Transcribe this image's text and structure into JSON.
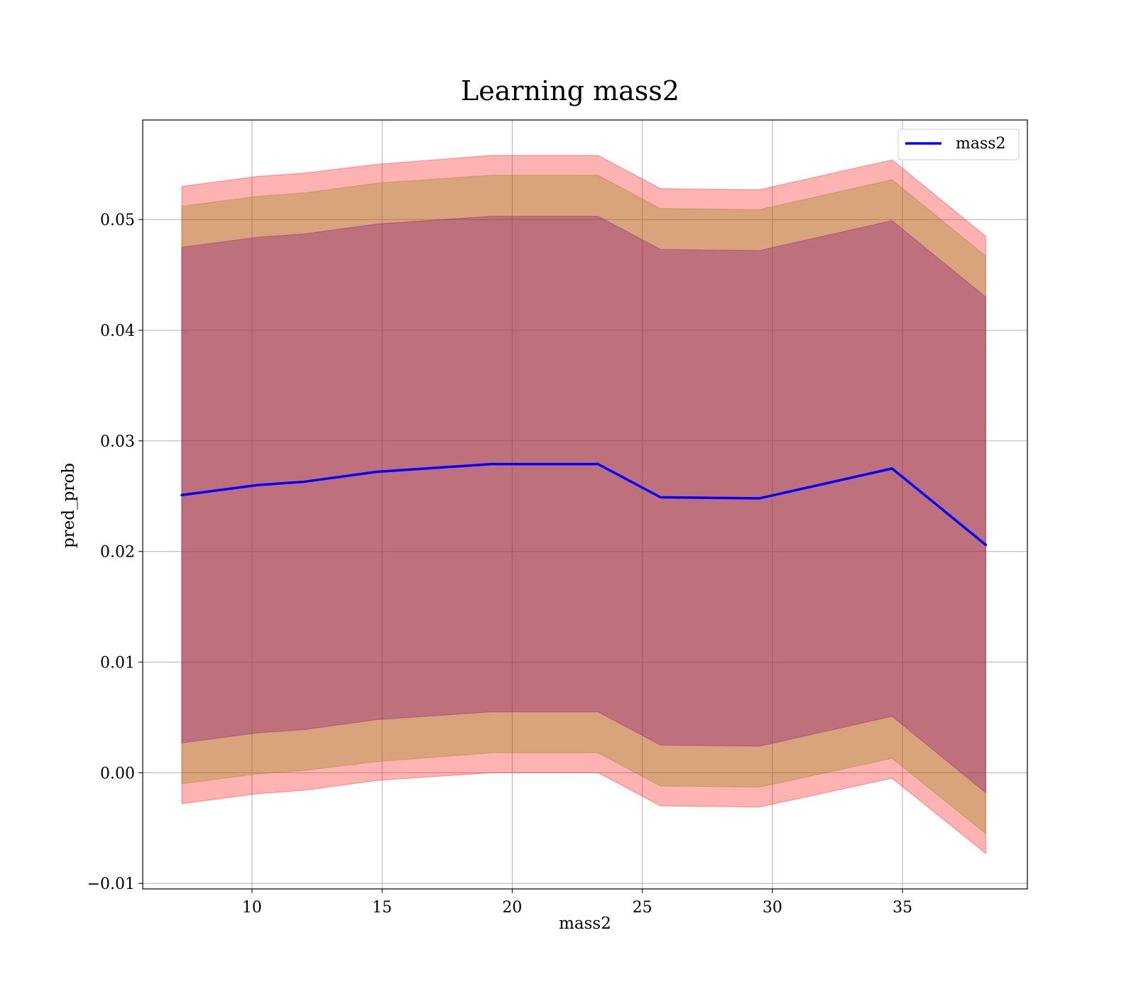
{
  "chart_data": {
    "type": "line",
    "title": "Learning mass2",
    "xlabel": "mass2",
    "ylabel": "pred_prob",
    "xlim": [
      5.8,
      39.8
    ],
    "ylim": [
      -0.0105,
      0.059
    ],
    "xticks": [
      10,
      15,
      20,
      25,
      30,
      35
    ],
    "yticks": [
      -0.01,
      0.0,
      0.01,
      0.02,
      0.03,
      0.04,
      0.05
    ],
    "ytick_labels": [
      "−0.01",
      "0.00",
      "0.01",
      "0.02",
      "0.03",
      "0.04",
      "0.05"
    ],
    "grid": true,
    "legend": {
      "position": "top-right",
      "entries": [
        "mass2"
      ]
    },
    "x": [
      7.3,
      10.2,
      12.0,
      14.8,
      19.2,
      23.3,
      25.7,
      29.5,
      34.6,
      38.2
    ],
    "series": [
      {
        "name": "mass2",
        "color": "#0000ff",
        "values": [
          0.0251,
          0.026,
          0.0263,
          0.0272,
          0.0279,
          0.0279,
          0.0249,
          0.0248,
          0.0275,
          0.0206
        ]
      }
    ],
    "bands": [
      {
        "color": "#ff0000",
        "opacity": 0.3,
        "lower": [
          -0.0028,
          -0.0019,
          -0.0016,
          -0.0007,
          0.0,
          0.0,
          -0.003,
          -0.0031,
          -0.0005,
          -0.0073
        ],
        "upper": [
          0.053,
          0.0539,
          0.0542,
          0.055,
          0.0558,
          0.0558,
          0.0528,
          0.0527,
          0.0554,
          0.0485
        ]
      },
      {
        "color": "#808000",
        "opacity": 0.3,
        "lower": [
          -0.001,
          -0.0001,
          0.0002,
          0.001,
          0.0018,
          0.0018,
          -0.0012,
          -0.0013,
          0.0013,
          -0.0055
        ],
        "upper": [
          0.0512,
          0.0521,
          0.0524,
          0.0533,
          0.054,
          0.054,
          0.051,
          0.0509,
          0.0536,
          0.0467
        ]
      },
      {
        "color": "#800080",
        "opacity": 0.3,
        "lower": [
          0.0027,
          0.0036,
          0.0039,
          0.0048,
          0.0055,
          0.0055,
          0.0025,
          0.0024,
          0.0051,
          -0.0018
        ],
        "upper": [
          0.0475,
          0.0484,
          0.0487,
          0.0496,
          0.0503,
          0.0503,
          0.0473,
          0.0472,
          0.0499,
          0.043
        ]
      }
    ]
  }
}
